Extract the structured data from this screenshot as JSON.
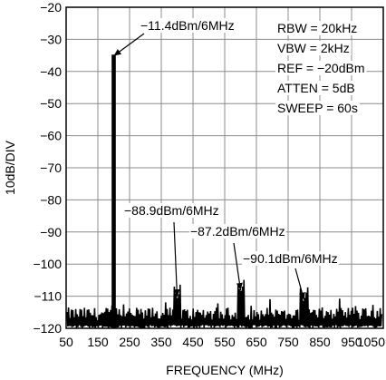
{
  "chart_data": {
    "type": "line",
    "title": "",
    "xlabel": "FREQUENCY (MHz)",
    "ylabel": "10dB/DIV",
    "xlim": [
      50,
      1050
    ],
    "ylim": [
      -120,
      -20
    ],
    "x_ticks": [
      50,
      150,
      250,
      350,
      450,
      550,
      650,
      750,
      850,
      950,
      1050
    ],
    "x_tick_labels": [
      "50",
      "150",
      "250",
      "350",
      "450",
      "550",
      "650",
      "750",
      "850",
      "950",
      "1050"
    ],
    "y_ticks": [
      -20,
      -30,
      -40,
      -50,
      -60,
      -70,
      -80,
      -90,
      -100,
      -110,
      -120
    ],
    "y_tick_labels": [
      "−20",
      "−30",
      "−40",
      "−50",
      "−60",
      "−70",
      "−80",
      "−90",
      "−100",
      "−110",
      "−120"
    ],
    "grid": true,
    "noise_floor_dbm": -117.5,
    "peaks": [
      {
        "x": 200,
        "y": -35
      },
      {
        "x": 400,
        "y": -112
      },
      {
        "x": 600,
        "y": -110
      },
      {
        "x": 800,
        "y": -113
      }
    ],
    "annotations": [
      {
        "text": "−11.4dBm/6MHz",
        "target_x": 200,
        "target_y": -36
      },
      {
        "text": "−88.9dBm/6MHz",
        "target_x": 400,
        "target_y": -111
      },
      {
        "text": "−87.2dBm/6MHz",
        "target_x": 600,
        "target_y": -109
      },
      {
        "text": "−90.1dBm/6MHz",
        "target_x": 800,
        "target_y": -112
      }
    ],
    "settings": [
      "RBW = 20kHz",
      "VBW = 2kHz",
      "REF = −20dBm",
      "ATTEN = 5dB",
      "SWEEP = 60s"
    ]
  }
}
